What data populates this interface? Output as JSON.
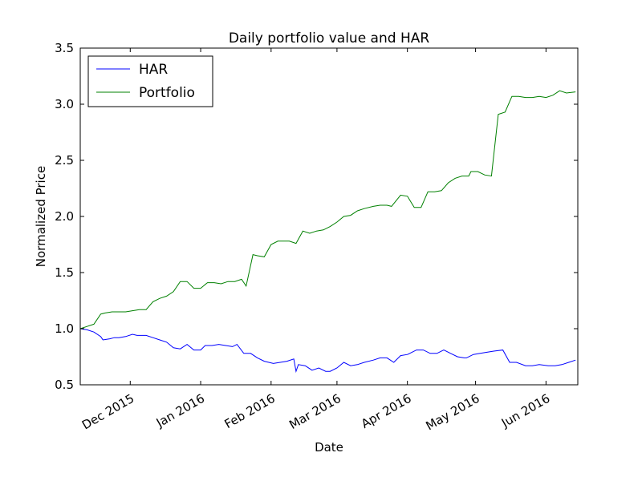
{
  "chart_data": {
    "type": "line",
    "title": "Daily portfolio value and HAR",
    "xlabel": "Date",
    "ylabel": "Normalized Price",
    "x_range": [
      "2015-11-09",
      "2016-06-15"
    ],
    "ylim": [
      0.5,
      3.5
    ],
    "y_ticks": [
      0.5,
      1.0,
      1.5,
      2.0,
      2.5,
      3.0,
      3.5
    ],
    "y_tick_labels": [
      "0.5",
      "1.0",
      "1.5",
      "2.0",
      "2.5",
      "3.0",
      "3.5"
    ],
    "x_ticks": [
      "2015-12-01",
      "2016-01-01",
      "2016-02-01",
      "2016-03-01",
      "2016-04-01",
      "2016-05-01",
      "2016-06-01"
    ],
    "x_tick_labels": [
      "Dec 2015",
      "Jan 2016",
      "Feb 2016",
      "Mar 2016",
      "Apr 2016",
      "May 2016",
      "Jun 2016"
    ],
    "grid": false,
    "legend_position": "top-left",
    "series": [
      {
        "name": "HAR",
        "color": "#0000ff",
        "x": [
          "2015-11-09",
          "2015-11-12",
          "2015-11-15",
          "2015-11-18",
          "2015-11-19",
          "2015-11-22",
          "2015-11-24",
          "2015-11-26",
          "2015-11-29",
          "2015-12-02",
          "2015-12-04",
          "2015-12-06",
          "2015-12-08",
          "2015-12-11",
          "2015-12-14",
          "2015-12-17",
          "2015-12-20",
          "2015-12-23",
          "2015-12-26",
          "2015-12-29",
          "2016-01-01",
          "2016-01-03",
          "2016-01-06",
          "2016-01-09",
          "2016-01-12",
          "2016-01-15",
          "2016-01-17",
          "2016-01-20",
          "2016-01-22",
          "2016-01-23",
          "2016-01-26",
          "2016-01-29",
          "2016-02-02",
          "2016-02-05",
          "2016-02-08",
          "2016-02-11",
          "2016-02-12",
          "2016-02-13",
          "2016-02-16",
          "2016-02-19",
          "2016-02-22",
          "2016-02-25",
          "2016-02-27",
          "2016-03-01",
          "2016-03-04",
          "2016-03-07",
          "2016-03-10",
          "2016-03-13",
          "2016-03-17",
          "2016-03-20",
          "2016-03-23",
          "2016-03-26",
          "2016-03-29",
          "2016-04-01",
          "2016-04-05",
          "2016-04-08",
          "2016-04-11",
          "2016-04-14",
          "2016-04-17",
          "2016-04-20",
          "2016-04-23",
          "2016-04-26",
          "2016-04-27",
          "2016-04-30",
          "2016-05-03",
          "2016-05-06",
          "2016-05-09",
          "2016-05-13",
          "2016-05-16",
          "2016-05-19",
          "2016-05-23",
          "2016-05-26",
          "2016-05-29",
          "2016-06-02",
          "2016-06-05",
          "2016-06-08",
          "2016-06-11",
          "2016-06-14"
        ],
        "y": [
          1.0,
          0.99,
          0.97,
          0.93,
          0.9,
          0.91,
          0.92,
          0.92,
          0.93,
          0.95,
          0.94,
          0.94,
          0.94,
          0.92,
          0.9,
          0.88,
          0.83,
          0.82,
          0.86,
          0.81,
          0.81,
          0.85,
          0.85,
          0.86,
          0.85,
          0.84,
          0.86,
          0.78,
          0.78,
          0.78,
          0.74,
          0.71,
          0.69,
          0.7,
          0.71,
          0.73,
          0.62,
          0.68,
          0.67,
          0.63,
          0.65,
          0.62,
          0.62,
          0.65,
          0.7,
          0.67,
          0.68,
          0.7,
          0.72,
          0.74,
          0.74,
          0.7,
          0.76,
          0.77,
          0.81,
          0.81,
          0.78,
          0.78,
          0.81,
          0.78,
          0.75,
          0.74,
          0.74,
          0.77,
          0.78,
          0.79,
          0.8,
          0.81,
          0.7,
          0.7,
          0.67,
          0.67,
          0.68,
          0.67,
          0.67,
          0.68,
          0.7,
          0.72
        ]
      },
      {
        "name": "Portfolio",
        "color": "#008000",
        "x": [
          "2015-11-09",
          "2015-11-12",
          "2015-11-15",
          "2015-11-18",
          "2015-11-20",
          "2015-11-23",
          "2015-11-26",
          "2015-11-29",
          "2015-12-02",
          "2015-12-05",
          "2015-12-08",
          "2015-12-11",
          "2015-12-14",
          "2015-12-17",
          "2015-12-20",
          "2015-12-23",
          "2015-12-26",
          "2015-12-29",
          "2016-01-01",
          "2016-01-04",
          "2016-01-07",
          "2016-01-10",
          "2016-01-13",
          "2016-01-16",
          "2016-01-19",
          "2016-01-21",
          "2016-01-24",
          "2016-01-26",
          "2016-01-29",
          "2016-02-01",
          "2016-02-04",
          "2016-02-07",
          "2016-02-09",
          "2016-02-12",
          "2016-02-15",
          "2016-02-18",
          "2016-02-21",
          "2016-02-24",
          "2016-02-27",
          "2016-03-01",
          "2016-03-04",
          "2016-03-07",
          "2016-03-10",
          "2016-03-13",
          "2016-03-17",
          "2016-03-20",
          "2016-03-23",
          "2016-03-25",
          "2016-03-29",
          "2016-04-01",
          "2016-04-04",
          "2016-04-07",
          "2016-04-10",
          "2016-04-13",
          "2016-04-16",
          "2016-04-19",
          "2016-04-22",
          "2016-04-25",
          "2016-04-28",
          "2016-04-29",
          "2016-05-02",
          "2016-05-05",
          "2016-05-08",
          "2016-05-11",
          "2016-05-14",
          "2016-05-17",
          "2016-05-20",
          "2016-05-23",
          "2016-05-26",
          "2016-05-29",
          "2016-06-01",
          "2016-06-04",
          "2016-06-07",
          "2016-06-10",
          "2016-06-14"
        ],
        "y": [
          1.0,
          1.02,
          1.04,
          1.13,
          1.14,
          1.15,
          1.15,
          1.15,
          1.16,
          1.17,
          1.17,
          1.24,
          1.27,
          1.29,
          1.33,
          1.42,
          1.42,
          1.36,
          1.36,
          1.41,
          1.41,
          1.4,
          1.42,
          1.42,
          1.44,
          1.38,
          1.66,
          1.65,
          1.64,
          1.75,
          1.78,
          1.78,
          1.78,
          1.76,
          1.87,
          1.85,
          1.87,
          1.88,
          1.91,
          1.95,
          2.0,
          2.01,
          2.05,
          2.07,
          2.09,
          2.1,
          2.1,
          2.09,
          2.19,
          2.18,
          2.08,
          2.08,
          2.22,
          2.22,
          2.23,
          2.3,
          2.34,
          2.36,
          2.36,
          2.4,
          2.4,
          2.37,
          2.36,
          2.91,
          2.93,
          3.07,
          3.07,
          3.06,
          3.06,
          3.07,
          3.06,
          3.08,
          3.12,
          3.1,
          3.11
        ]
      }
    ]
  }
}
